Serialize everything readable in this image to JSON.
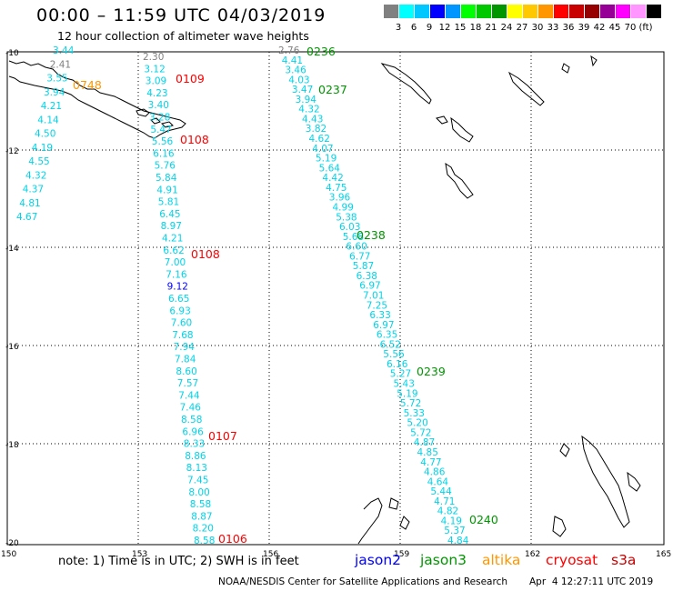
{
  "header": {
    "title": "00:00 – 11:59 UTC 04/03/2019",
    "subtitle": "12 hour collection of altimeter wave heights"
  },
  "scale": {
    "colors": [
      "#808080",
      "#00ffff",
      "#00c8ff",
      "#0000ff",
      "#0096ff",
      "#00ff00",
      "#00c800",
      "#009600",
      "#ffff00",
      "#ffc800",
      "#ff9600",
      "#ff0000",
      "#c80000",
      "#960000",
      "#960096",
      "#ff00ff",
      "#ff96ff",
      "#000000"
    ],
    "labels": [
      "3",
      "6",
      "9",
      "12",
      "15",
      "18",
      "21",
      "24",
      "27",
      "30",
      "33",
      "36",
      "39",
      "42",
      "45",
      "70",
      "(ft)"
    ]
  },
  "axes": {
    "lon_ticks": [
      "150",
      "153",
      "156",
      "159",
      "162",
      "165"
    ],
    "lat_ticks": [
      "-10",
      "-12",
      "-14",
      "-16",
      "-18",
      "-20"
    ]
  },
  "passes": [
    {
      "id": "t1",
      "values": [
        "3.44",
        "2.41",
        "3.55",
        "3.94",
        "4.21",
        "4.14",
        "4.50",
        "4.19",
        "4.55",
        "4.32",
        "4.37",
        "4.81",
        "4.67"
      ]
    },
    {
      "id": "t2",
      "values": [
        "2.30",
        "3.12",
        "3.09",
        "4.23",
        "3.40",
        "3.28",
        "5.47",
        "5.56",
        "6.16",
        "5.76",
        "5.84",
        "4.91",
        "5.81",
        "6.45",
        "8.97",
        "4.21",
        "6.62",
        "7.00",
        "7.16",
        "9.12",
        "6.65",
        "6.93",
        "7.60",
        "7.68",
        "7.94",
        "7.84",
        "8.60",
        "7.57",
        "7.44",
        "7.46",
        "8.58",
        "6.96",
        "8.33",
        "8.86",
        "8.13",
        "7.45",
        "8.00",
        "8.58",
        "8.87",
        "8.20",
        "8.58"
      ]
    },
    {
      "id": "t3",
      "values": [
        "2.76",
        "4.41",
        "3.46",
        "4.03",
        "3.47",
        "3.94",
        "4.32",
        "4.43",
        "3.82",
        "4.62",
        "4.07",
        "5.19",
        "5.64",
        "4.42",
        "4.75",
        "3.96",
        "4.99",
        "5.38",
        "6.03",
        "5.68",
        "6.60",
        "6.77",
        "5.87",
        "6.38",
        "6.97",
        "7.01",
        "7.25",
        "6.33",
        "6.97",
        "6.35",
        "6.52",
        "5.56",
        "6.16",
        "5.27",
        "5.43",
        "5.19",
        "5.72",
        "5.33",
        "5.20",
        "5.72",
        "4.87",
        "4.85",
        "4.77",
        "4.86",
        "4.64",
        "5.44",
        "4.71",
        "4.82",
        "4.19",
        "5.37",
        "4.84"
      ]
    }
  ],
  "time_labels": [
    {
      "text": "0748",
      "color": "#ff9600"
    },
    {
      "text": "0109",
      "color": "#ff0000"
    },
    {
      "text": "0108",
      "color": "#ff0000"
    },
    {
      "text": "0108",
      "color": "#ff0000"
    },
    {
      "text": "0107",
      "color": "#ff0000"
    },
    {
      "text": "0106",
      "color": "#ff0000"
    },
    {
      "text": "0236",
      "color": "#009600"
    },
    {
      "text": "0237",
      "color": "#009600"
    },
    {
      "text": "0238",
      "color": "#009600"
    },
    {
      "text": "0239",
      "color": "#009600"
    },
    {
      "text": "0240",
      "color": "#009600"
    }
  ],
  "legend": {
    "note": "note: 1) Time is in UTC; 2) SWH is in feet",
    "satellites": [
      {
        "name": "jason2",
        "color": "#0000ff"
      },
      {
        "name": "jason3",
        "color": "#009600"
      },
      {
        "name": "altika",
        "color": "#ff9600"
      },
      {
        "name": "cryosat",
        "color": "#ff0000"
      },
      {
        "name": "s3a",
        "color": "#c80000"
      }
    ]
  },
  "footer": {
    "credit": "NOAA/NESDIS Center for Satellite Applications and Research",
    "timestamp": "Apr  4 12:27:11 UTC 2019"
  }
}
